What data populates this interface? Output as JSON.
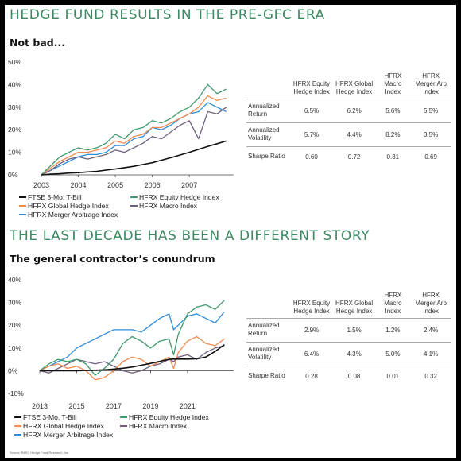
{
  "sections": [
    {
      "title": "HEDGE FUND RESULTS IN THE PRE-GFC ERA",
      "subtitle": "Not bad..."
    },
    {
      "title": "THE LAST DECADE HAS BEEN A DIFFERENT STORY",
      "subtitle": "The general contractor’s conundrum"
    }
  ],
  "tables": [
    {
      "columns": [
        "HFRX Equity Hedge Index",
        "HFRX Global Hedge Index",
        "HFRX Macro Index",
        "HFRX Merger Arb Index"
      ],
      "rows": [
        {
          "label": "Annualized Return",
          "values": [
            "6.5%",
            "6.2%",
            "5.6%",
            "5.5%"
          ]
        },
        {
          "label": "Annualized Volatility",
          "values": [
            "5.7%",
            "4.4%",
            "8.2%",
            "3.5%"
          ]
        },
        {
          "label": "Sharpe Ratio",
          "values": [
            "0.60",
            "0.72",
            "0.31",
            "0.69"
          ]
        }
      ]
    },
    {
      "columns": [
        "HFRX Equity Hedge Index",
        "HFRX Global Hedge Index",
        "HFRX Macro Index",
        "HFRX Merger Arb Index"
      ],
      "rows": [
        {
          "label": "Annualized Return",
          "values": [
            "2.9%",
            "1.5%",
            "1.2%",
            "2.4%"
          ]
        },
        {
          "label": "Annualized Volatility",
          "values": [
            "6.4%",
            "4.3%",
            "5.0%",
            "4.1%"
          ]
        },
        {
          "label": "Sharpe Ratio",
          "values": [
            "0.28",
            "0.08",
            "0.01",
            "0.32"
          ]
        }
      ]
    }
  ],
  "source_note": "Source: BMO, Hedge Fund Research, Inc.",
  "colors": {
    "title_green": "#3d8a63",
    "tbill": "#111111",
    "equity_hedge": "#3e9a6c",
    "global_hedge": "#ef8a4e",
    "macro": "#6f5f7c",
    "merger_arb": "#2e8bd9"
  },
  "chart_data": [
    {
      "type": "line",
      "title": "",
      "xlabel": "",
      "ylabel": "",
      "xlim": [
        2003.0,
        2008.2
      ],
      "ylim": [
        0,
        50
      ],
      "x_ticks": [
        2003,
        2004,
        2005,
        2006,
        2007
      ],
      "x_tick_labels": [
        "2003",
        "2004",
        "2005",
        "2006",
        "2007"
      ],
      "y_ticks": [
        0,
        10,
        20,
        30,
        40,
        50
      ],
      "y_tick_labels": [
        "0%",
        "10%",
        "20%",
        "30%",
        "40%",
        "50%"
      ],
      "grid": false,
      "legend": "bottom",
      "x": [
        2003.0,
        2003.25,
        2003.5,
        2003.75,
        2004.0,
        2004.25,
        2004.5,
        2004.75,
        2005.0,
        2005.25,
        2005.5,
        2005.75,
        2006.0,
        2006.25,
        2006.5,
        2006.75,
        2007.0,
        2007.25,
        2007.5,
        2007.75,
        2008.0
      ],
      "series": [
        {
          "name": "FTSE 3-Mo. T-Bill",
          "color": "#111111",
          "values": [
            0.0,
            0.3,
            0.5,
            0.8,
            1.0,
            1.3,
            1.6,
            2.1,
            2.6,
            3.2,
            3.8,
            4.6,
            5.4,
            6.5,
            7.6,
            8.8,
            10.0,
            11.3,
            12.6,
            13.8,
            15.0
          ]
        },
        {
          "name": "HFRX Equity Hedge Index",
          "color": "#3e9a6c",
          "values": [
            0.0,
            4.0,
            8.0,
            10.0,
            12.0,
            11.0,
            12.0,
            14.0,
            18.0,
            16.0,
            20.0,
            21.0,
            24.0,
            23.0,
            25.0,
            28.0,
            30.0,
            34.0,
            40.0,
            36.0,
            38.0
          ]
        },
        {
          "name": "HFRX Global Hedge Index",
          "color": "#ef8a4e",
          "values": [
            0.0,
            3.0,
            6.0,
            8.0,
            10.0,
            10.0,
            11.0,
            12.0,
            15.0,
            14.0,
            17.0,
            18.0,
            21.0,
            21.0,
            23.0,
            25.0,
            27.0,
            30.0,
            35.0,
            33.0,
            34.0
          ]
        },
        {
          "name": "HFRX Macro Index",
          "color": "#6f5f7c",
          "values": [
            0.0,
            2.0,
            5.0,
            7.0,
            8.0,
            7.0,
            8.0,
            9.0,
            11.0,
            10.0,
            12.0,
            14.0,
            17.0,
            16.0,
            19.0,
            22.0,
            24.0,
            16.0,
            28.0,
            27.0,
            30.0
          ]
        },
        {
          "name": "HFRX Merger Arbitrage Index",
          "color": "#2e8bd9",
          "values": [
            0.0,
            2.0,
            4.0,
            6.0,
            8.0,
            9.0,
            9.0,
            10.0,
            13.0,
            13.0,
            16.0,
            17.0,
            21.0,
            20.0,
            22.0,
            25.0,
            27.0,
            28.0,
            32.0,
            30.0,
            28.0
          ]
        }
      ]
    },
    {
      "type": "line",
      "title": "",
      "xlabel": "",
      "ylabel": "",
      "xlim": [
        2013.0,
        2023.5
      ],
      "ylim": [
        -10,
        40
      ],
      "x_ticks": [
        2013,
        2015,
        2017,
        2019,
        2021
      ],
      "x_tick_labels": [
        "2013",
        "2015",
        "2017",
        "2019",
        "2021"
      ],
      "y_ticks": [
        -10,
        0,
        10,
        20,
        30,
        40
      ],
      "y_tick_labels": [
        "-10%",
        "0%",
        "10%",
        "20%",
        "30%",
        "40%"
      ],
      "grid": false,
      "legend": "bottom",
      "x": [
        2013.0,
        2013.5,
        2014.0,
        2014.5,
        2015.0,
        2015.5,
        2016.0,
        2016.5,
        2017.0,
        2017.5,
        2018.0,
        2018.5,
        2019.0,
        2019.5,
        2020.0,
        2020.25,
        2020.5,
        2021.0,
        2021.5,
        2022.0,
        2022.5,
        2023.0
      ],
      "series": [
        {
          "name": "FTSE 3-Mo. T-Bill",
          "color": "#111111",
          "values": [
            0.0,
            0.0,
            0.0,
            0.0,
            0.0,
            0.1,
            0.2,
            0.4,
            0.7,
            1.1,
            1.6,
            2.4,
            3.2,
            4.1,
            5.0,
            5.1,
            5.1,
            5.1,
            5.2,
            6.0,
            8.5,
            11.5
          ]
        },
        {
          "name": "HFRX Equity Hedge Index",
          "color": "#3e9a6c",
          "values": [
            0.0,
            3.0,
            5.0,
            4.0,
            5.0,
            3.0,
            -2.0,
            1.0,
            5.0,
            12.0,
            15.0,
            13.0,
            10.0,
            13.0,
            14.0,
            7.0,
            16.0,
            25.0,
            28.0,
            29.0,
            27.0,
            31.0
          ]
        },
        {
          "name": "HFRX Global Hedge Index",
          "color": "#ef8a4e",
          "values": [
            0.0,
            2.0,
            3.0,
            1.0,
            2.0,
            0.0,
            -4.0,
            -3.0,
            0.0,
            4.0,
            6.0,
            5.0,
            2.0,
            4.0,
            6.0,
            1.0,
            8.0,
            13.0,
            15.0,
            12.0,
            11.0,
            14.0
          ]
        },
        {
          "name": "HFRX Macro Index",
          "color": "#6f5f7c",
          "values": [
            0.0,
            -1.0,
            1.0,
            3.0,
            5.0,
            4.0,
            3.0,
            4.0,
            2.0,
            0.0,
            -1.0,
            0.0,
            2.0,
            3.0,
            5.0,
            4.0,
            6.0,
            7.0,
            5.0,
            8.0,
            10.0,
            11.0
          ]
        },
        {
          "name": "HFRX Merger Arbitrage Index",
          "color": "#2e8bd9",
          "values": [
            0.0,
            2.0,
            4.0,
            6.0,
            10.0,
            12.0,
            14.0,
            16.0,
            18.0,
            18.0,
            18.0,
            17.0,
            20.0,
            23.0,
            25.0,
            18.0,
            20.0,
            24.0,
            25.0,
            23.0,
            21.0,
            26.0
          ]
        }
      ]
    }
  ]
}
